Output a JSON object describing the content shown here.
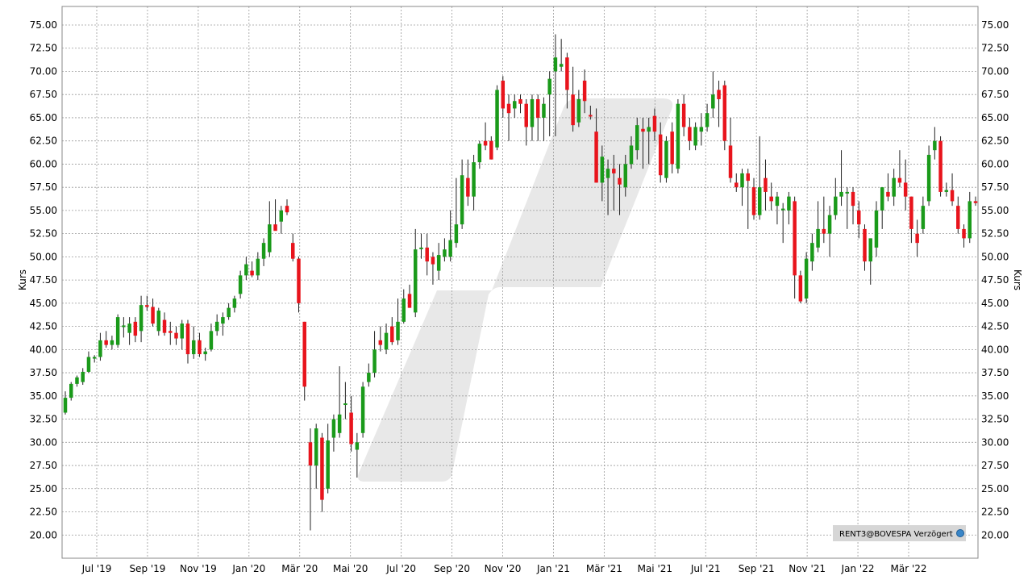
{
  "chart_data": {
    "type": "candlestick",
    "ylabel_left": "Kurs",
    "ylabel_right": "Kurs",
    "ylim": [
      17.5,
      77
    ],
    "y_ticks": [
      "20.00",
      "22.50",
      "25.00",
      "27.50",
      "30.00",
      "32.50",
      "35.00",
      "37.50",
      "40.00",
      "42.50",
      "45.00",
      "47.50",
      "50.00",
      "52.50",
      "55.00",
      "57.50",
      "60.00",
      "62.50",
      "65.00",
      "67.50",
      "70.00",
      "72.50",
      "75.00"
    ],
    "x_ticks": [
      "Jul '19",
      "Sep '19",
      "Nov '19",
      "Jan '20",
      "Mär '20",
      "Mai '20",
      "Jul '20",
      "Sep '20",
      "Nov '20",
      "Jan '21",
      "Mär '21",
      "Mai '21",
      "Jul '21",
      "Sep '21",
      "Nov '21",
      "Jan '22",
      "Mär '22"
    ],
    "grid": true,
    "up_color": "#1a9a1a",
    "down_color": "#e8141c",
    "source_label": "RENT3@BOVESPA Verzögert",
    "candles": [
      {
        "o": 33.2,
        "h": 35.5,
        "l": 33.0,
        "c": 34.8
      },
      {
        "o": 34.8,
        "h": 36.5,
        "l": 34.5,
        "c": 36.3
      },
      {
        "o": 36.3,
        "h": 37.2,
        "l": 36.0,
        "c": 37.0
      },
      {
        "o": 36.5,
        "h": 38.0,
        "l": 36.2,
        "c": 37.6
      },
      {
        "o": 37.6,
        "h": 39.8,
        "l": 37.5,
        "c": 39.2
      },
      {
        "o": 39.2,
        "h": 39.4,
        "l": 38.6,
        "c": 39.2
      },
      {
        "o": 39.2,
        "h": 41.8,
        "l": 38.8,
        "c": 41.0
      },
      {
        "o": 41.0,
        "h": 42.0,
        "l": 40.2,
        "c": 40.5
      },
      {
        "o": 40.5,
        "h": 41.5,
        "l": 40.0,
        "c": 41.0
      },
      {
        "o": 40.5,
        "h": 43.8,
        "l": 40.2,
        "c": 43.5
      },
      {
        "o": 42.6,
        "h": 43.5,
        "l": 41.3,
        "c": 42.6
      },
      {
        "o": 41.8,
        "h": 43.5,
        "l": 40.5,
        "c": 42.8
      },
      {
        "o": 43.0,
        "h": 43.5,
        "l": 40.8,
        "c": 41.5
      },
      {
        "o": 42.0,
        "h": 45.8,
        "l": 40.8,
        "c": 44.8
      },
      {
        "o": 44.8,
        "h": 45.8,
        "l": 44.2,
        "c": 44.6
      },
      {
        "o": 44.6,
        "h": 45.5,
        "l": 42.5,
        "c": 42.8
      },
      {
        "o": 42.0,
        "h": 44.5,
        "l": 41.5,
        "c": 44.2
      },
      {
        "o": 43.2,
        "h": 44.0,
        "l": 41.5,
        "c": 41.8
      },
      {
        "o": 42.0,
        "h": 43.0,
        "l": 40.5,
        "c": 41.8
      },
      {
        "o": 41.8,
        "h": 42.5,
        "l": 40.5,
        "c": 41.2
      },
      {
        "o": 41.2,
        "h": 43.2,
        "l": 40.0,
        "c": 42.8
      },
      {
        "o": 42.8,
        "h": 43.2,
        "l": 38.5,
        "c": 39.5
      },
      {
        "o": 39.5,
        "h": 42.5,
        "l": 39.0,
        "c": 41.0
      },
      {
        "o": 41.0,
        "h": 41.8,
        "l": 39.2,
        "c": 39.5
      },
      {
        "o": 39.5,
        "h": 40.2,
        "l": 38.8,
        "c": 39.8
      },
      {
        "o": 40.0,
        "h": 42.8,
        "l": 39.8,
        "c": 42.0
      },
      {
        "o": 42.0,
        "h": 43.8,
        "l": 41.5,
        "c": 43.0
      },
      {
        "o": 42.8,
        "h": 44.0,
        "l": 41.5,
        "c": 43.5
      },
      {
        "o": 43.5,
        "h": 45.0,
        "l": 43.2,
        "c": 44.5
      },
      {
        "o": 44.5,
        "h": 45.8,
        "l": 44.0,
        "c": 45.5
      },
      {
        "o": 46.0,
        "h": 48.5,
        "l": 45.5,
        "c": 48.0
      },
      {
        "o": 48.0,
        "h": 50.0,
        "l": 47.5,
        "c": 49.2
      },
      {
        "o": 48.5,
        "h": 49.5,
        "l": 47.8,
        "c": 48.0
      },
      {
        "o": 48.0,
        "h": 50.5,
        "l": 47.5,
        "c": 49.8
      },
      {
        "o": 49.8,
        "h": 52.0,
        "l": 49.0,
        "c": 51.5
      },
      {
        "o": 50.5,
        "h": 56.0,
        "l": 50.0,
        "c": 53.5
      },
      {
        "o": 53.5,
        "h": 56.2,
        "l": 53.0,
        "c": 52.8
      },
      {
        "o": 53.8,
        "h": 55.5,
        "l": 52.5,
        "c": 55.0
      },
      {
        "o": 55.5,
        "h": 56.2,
        "l": 54.5,
        "c": 54.8
      },
      {
        "o": 51.5,
        "h": 52.5,
        "l": 49.5,
        "c": 49.8
      },
      {
        "o": 49.8,
        "h": 50.0,
        "l": 44.0,
        "c": 45.0
      },
      {
        "o": 43.0,
        "h": 43.0,
        "l": 34.5,
        "c": 36.0
      },
      {
        "o": 30.0,
        "h": 31.5,
        "l": 20.5,
        "c": 27.5
      },
      {
        "o": 27.5,
        "h": 32.0,
        "l": 25.0,
        "c": 31.5
      },
      {
        "o": 30.5,
        "h": 31.0,
        "l": 22.5,
        "c": 23.8
      },
      {
        "o": 25.0,
        "h": 32.0,
        "l": 24.5,
        "c": 30.2
      },
      {
        "o": 30.5,
        "h": 33.0,
        "l": 29.0,
        "c": 32.5
      },
      {
        "o": 31.0,
        "h": 38.2,
        "l": 30.5,
        "c": 33.0
      },
      {
        "o": 34.2,
        "h": 36.5,
        "l": 32.5,
        "c": 34.2
      },
      {
        "o": 33.2,
        "h": 35.0,
        "l": 29.0,
        "c": 29.8
      },
      {
        "o": 29.2,
        "h": 31.0,
        "l": 26.2,
        "c": 30.0
      },
      {
        "o": 31.0,
        "h": 36.5,
        "l": 30.5,
        "c": 36.0
      },
      {
        "o": 36.5,
        "h": 38.5,
        "l": 36.0,
        "c": 37.5
      },
      {
        "o": 37.5,
        "h": 42.0,
        "l": 37.0,
        "c": 40.0
      },
      {
        "o": 41.0,
        "h": 42.5,
        "l": 39.8,
        "c": 40.5
      },
      {
        "o": 40.0,
        "h": 42.8,
        "l": 39.5,
        "c": 41.8
      },
      {
        "o": 42.5,
        "h": 43.5,
        "l": 40.5,
        "c": 40.8
      },
      {
        "o": 41.0,
        "h": 45.5,
        "l": 40.5,
        "c": 43.0
      },
      {
        "o": 43.0,
        "h": 46.5,
        "l": 42.8,
        "c": 45.5
      },
      {
        "o": 46.0,
        "h": 47.0,
        "l": 44.5,
        "c": 44.5
      },
      {
        "o": 44.0,
        "h": 53.0,
        "l": 43.5,
        "c": 50.8
      },
      {
        "o": 51.0,
        "h": 52.5,
        "l": 49.8,
        "c": 51.0
      },
      {
        "o": 51.0,
        "h": 52.5,
        "l": 48.0,
        "c": 49.5
      },
      {
        "o": 50.0,
        "h": 50.5,
        "l": 47.0,
        "c": 49.2
      },
      {
        "o": 48.5,
        "h": 51.5,
        "l": 47.5,
        "c": 50.2
      },
      {
        "o": 50.0,
        "h": 52.0,
        "l": 49.5,
        "c": 50.8
      },
      {
        "o": 50.0,
        "h": 55.0,
        "l": 49.5,
        "c": 51.8
      },
      {
        "o": 51.5,
        "h": 58.5,
        "l": 51.0,
        "c": 53.5
      },
      {
        "o": 53.5,
        "h": 60.5,
        "l": 53.0,
        "c": 58.8
      },
      {
        "o": 58.5,
        "h": 60.5,
        "l": 55.5,
        "c": 56.5
      },
      {
        "o": 56.5,
        "h": 61.0,
        "l": 55.0,
        "c": 60.2
      },
      {
        "o": 60.2,
        "h": 62.5,
        "l": 59.5,
        "c": 62.2
      },
      {
        "o": 62.5,
        "h": 64.5,
        "l": 61.5,
        "c": 62.0
      },
      {
        "o": 62.5,
        "h": 63.0,
        "l": 60.5,
        "c": 60.5
      },
      {
        "o": 61.8,
        "h": 68.5,
        "l": 61.5,
        "c": 68.0
      },
      {
        "o": 69.0,
        "h": 69.5,
        "l": 65.0,
        "c": 66.0
      },
      {
        "o": 66.5,
        "h": 67.5,
        "l": 62.5,
        "c": 65.5
      },
      {
        "o": 66.0,
        "h": 67.5,
        "l": 65.0,
        "c": 66.8
      },
      {
        "o": 67.0,
        "h": 67.5,
        "l": 65.5,
        "c": 66.5
      },
      {
        "o": 66.5,
        "h": 67.0,
        "l": 62.0,
        "c": 64.0
      },
      {
        "o": 64.0,
        "h": 67.5,
        "l": 62.5,
        "c": 67.0
      },
      {
        "o": 67.0,
        "h": 67.5,
        "l": 62.5,
        "c": 65.0
      },
      {
        "o": 65.0,
        "h": 67.2,
        "l": 62.5,
        "c": 66.5
      },
      {
        "o": 67.5,
        "h": 70.0,
        "l": 63.0,
        "c": 69.2
      },
      {
        "o": 70.0,
        "h": 74.0,
        "l": 63.0,
        "c": 71.5
      },
      {
        "o": 70.5,
        "h": 73.5,
        "l": 70.0,
        "c": 70.8
      },
      {
        "o": 71.5,
        "h": 72.0,
        "l": 66.0,
        "c": 68.0
      },
      {
        "o": 67.5,
        "h": 70.5,
        "l": 63.5,
        "c": 64.2
      },
      {
        "o": 64.5,
        "h": 68.0,
        "l": 64.0,
        "c": 67.0
      },
      {
        "o": 69.0,
        "h": 70.2,
        "l": 65.5,
        "c": 66.8
      },
      {
        "o": 65.3,
        "h": 66.3,
        "l": 64.8,
        "c": 65.2
      },
      {
        "o": 63.5,
        "h": 66.0,
        "l": 58.0,
        "c": 58.0
      },
      {
        "o": 58.0,
        "h": 62.0,
        "l": 56.0,
        "c": 60.8
      },
      {
        "o": 58.5,
        "h": 60.5,
        "l": 54.5,
        "c": 59.5
      },
      {
        "o": 59.5,
        "h": 61.0,
        "l": 55.0,
        "c": 59.0
      },
      {
        "o": 58.5,
        "h": 60.0,
        "l": 54.5,
        "c": 57.8
      },
      {
        "o": 57.5,
        "h": 61.0,
        "l": 56.5,
        "c": 60.0
      },
      {
        "o": 60.0,
        "h": 63.0,
        "l": 59.5,
        "c": 62.0
      },
      {
        "o": 61.5,
        "h": 65.0,
        "l": 60.5,
        "c": 64.2
      },
      {
        "o": 63.8,
        "h": 65.0,
        "l": 59.5,
        "c": 63.5
      },
      {
        "o": 63.5,
        "h": 65.0,
        "l": 60.0,
        "c": 64.0
      },
      {
        "o": 65.2,
        "h": 66.0,
        "l": 62.5,
        "c": 63.5
      },
      {
        "o": 63.2,
        "h": 64.5,
        "l": 58.0,
        "c": 58.8
      },
      {
        "o": 58.5,
        "h": 63.0,
        "l": 58.0,
        "c": 62.5
      },
      {
        "o": 63.5,
        "h": 64.5,
        "l": 59.0,
        "c": 60.0
      },
      {
        "o": 59.5,
        "h": 67.0,
        "l": 59.0,
        "c": 66.5
      },
      {
        "o": 66.5,
        "h": 67.5,
        "l": 63.0,
        "c": 64.0
      },
      {
        "o": 64.0,
        "h": 65.0,
        "l": 61.5,
        "c": 62.5
      },
      {
        "o": 62.0,
        "h": 64.5,
        "l": 61.5,
        "c": 64.0
      },
      {
        "o": 63.5,
        "h": 65.5,
        "l": 62.0,
        "c": 64.0
      },
      {
        "o": 64.0,
        "h": 66.5,
        "l": 63.5,
        "c": 65.5
      },
      {
        "o": 66.0,
        "h": 70.0,
        "l": 65.0,
        "c": 67.5
      },
      {
        "o": 68.0,
        "h": 69.0,
        "l": 64.0,
        "c": 67.0
      },
      {
        "o": 68.5,
        "h": 69.0,
        "l": 61.5,
        "c": 62.5
      },
      {
        "o": 62.0,
        "h": 65.0,
        "l": 58.0,
        "c": 58.5
      },
      {
        "o": 58.0,
        "h": 59.0,
        "l": 57.0,
        "c": 57.5
      },
      {
        "o": 57.5,
        "h": 59.5,
        "l": 55.5,
        "c": 59.0
      },
      {
        "o": 59.0,
        "h": 59.5,
        "l": 53.0,
        "c": 58.2
      },
      {
        "o": 57.5,
        "h": 58.5,
        "l": 54.0,
        "c": 54.5
      },
      {
        "o": 54.5,
        "h": 63.0,
        "l": 54.0,
        "c": 57.5
      },
      {
        "o": 58.5,
        "h": 60.5,
        "l": 55.0,
        "c": 57.0
      },
      {
        "o": 56.5,
        "h": 58.0,
        "l": 55.0,
        "c": 56.0
      },
      {
        "o": 55.5,
        "h": 57.0,
        "l": 53.5,
        "c": 56.5
      },
      {
        "o": 55.2,
        "h": 55.8,
        "l": 51.5,
        "c": 55.2
      },
      {
        "o": 55.0,
        "h": 57.0,
        "l": 53.5,
        "c": 56.5
      },
      {
        "o": 56.0,
        "h": 56.5,
        "l": 45.5,
        "c": 48.0
      },
      {
        "o": 48.0,
        "h": 48.5,
        "l": 45.0,
        "c": 45.2
      },
      {
        "o": 45.5,
        "h": 50.5,
        "l": 45.0,
        "c": 49.8
      },
      {
        "o": 49.5,
        "h": 52.5,
        "l": 48.5,
        "c": 51.5
      },
      {
        "o": 51.0,
        "h": 56.0,
        "l": 50.5,
        "c": 53.0
      },
      {
        "o": 53.0,
        "h": 56.5,
        "l": 51.5,
        "c": 52.5
      },
      {
        "o": 52.5,
        "h": 55.5,
        "l": 50.0,
        "c": 54.5
      },
      {
        "o": 54.5,
        "h": 58.5,
        "l": 54.0,
        "c": 56.5
      },
      {
        "o": 56.5,
        "h": 61.5,
        "l": 55.5,
        "c": 57.0
      },
      {
        "o": 57.0,
        "h": 57.5,
        "l": 53.0,
        "c": 57.0
      },
      {
        "o": 57.0,
        "h": 57.5,
        "l": 53.5,
        "c": 55.5
      },
      {
        "o": 55.0,
        "h": 56.0,
        "l": 52.0,
        "c": 53.5
      },
      {
        "o": 53.0,
        "h": 53.5,
        "l": 48.5,
        "c": 49.5
      },
      {
        "o": 49.5,
        "h": 52.0,
        "l": 47.0,
        "c": 52.0
      },
      {
        "o": 51.0,
        "h": 56.0,
        "l": 50.0,
        "c": 55.0
      },
      {
        "o": 55.0,
        "h": 57.5,
        "l": 53.0,
        "c": 57.5
      },
      {
        "o": 57.0,
        "h": 59.0,
        "l": 56.0,
        "c": 56.5
      },
      {
        "o": 56.5,
        "h": 59.5,
        "l": 55.5,
        "c": 58.5
      },
      {
        "o": 58.5,
        "h": 61.5,
        "l": 57.5,
        "c": 58.0
      },
      {
        "o": 58.0,
        "h": 60.5,
        "l": 55.0,
        "c": 56.5
      },
      {
        "o": 56.5,
        "h": 56.5,
        "l": 51.5,
        "c": 53.0
      },
      {
        "o": 52.5,
        "h": 54.0,
        "l": 50.0,
        "c": 51.5
      },
      {
        "o": 53.0,
        "h": 56.5,
        "l": 52.5,
        "c": 55.5
      },
      {
        "o": 56.0,
        "h": 62.0,
        "l": 55.5,
        "c": 61.0
      },
      {
        "o": 61.5,
        "h": 64.0,
        "l": 60.5,
        "c": 62.5
      },
      {
        "o": 62.5,
        "h": 63.0,
        "l": 56.5,
        "c": 57.0
      },
      {
        "o": 57.0,
        "h": 58.0,
        "l": 56.5,
        "c": 57.2
      },
      {
        "o": 57.2,
        "h": 59.0,
        "l": 55.5,
        "c": 56.0
      },
      {
        "o": 55.5,
        "h": 56.5,
        "l": 52.5,
        "c": 53.0
      },
      {
        "o": 53.0,
        "h": 53.5,
        "l": 51.0,
        "c": 52.0
      },
      {
        "o": 52.0,
        "h": 57.0,
        "l": 51.5,
        "c": 56.0
      },
      {
        "o": 56.0,
        "h": 56.5,
        "l": 55.5,
        "c": 55.8
      }
    ]
  }
}
